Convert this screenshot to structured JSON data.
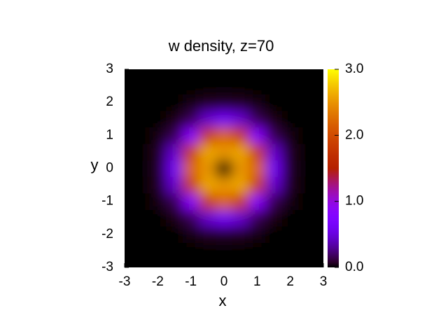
{
  "chart_data": {
    "type": "heatmap",
    "title": "w density, z=70",
    "x_label": "x",
    "y_label": "y",
    "x": [
      -3,
      -2.5,
      -2,
      -1.5,
      -1,
      -0.5,
      0,
      0.5,
      1,
      1.5,
      2,
      2.5,
      3
    ],
    "y": [
      -3,
      -2.5,
      -2,
      -1.5,
      -1,
      -0.5,
      0,
      0.5,
      1,
      1.5,
      2,
      2.5,
      3
    ],
    "z": [
      [
        0,
        0,
        0,
        0,
        0,
        0,
        0,
        0,
        0,
        0,
        0,
        0,
        0
      ],
      [
        0,
        0,
        0,
        0,
        0,
        0,
        0,
        0,
        0,
        0,
        0,
        0,
        0
      ],
      [
        0,
        0,
        0,
        0,
        0.02,
        0.05,
        0.06,
        0.05,
        0.02,
        0,
        0,
        0,
        0
      ],
      [
        0,
        0,
        0,
        0.03,
        0.15,
        0.45,
        0.6,
        0.45,
        0.15,
        0.03,
        0,
        0,
        0
      ],
      [
        0,
        0,
        0.02,
        0.15,
        0.8,
        1.8,
        2.2,
        1.8,
        0.8,
        0.15,
        0.02,
        0,
        0
      ],
      [
        0,
        0,
        0.05,
        0.45,
        1.8,
        2.6,
        2.5,
        2.6,
        1.8,
        0.45,
        0.05,
        0,
        0
      ],
      [
        0,
        0,
        0.06,
        0.6,
        2.2,
        2.5,
        0,
        2.5,
        2.2,
        0.6,
        0.06,
        0,
        0
      ],
      [
        0,
        0,
        0.05,
        0.45,
        1.8,
        2.6,
        2.5,
        2.6,
        1.8,
        0.45,
        0.05,
        0,
        0
      ],
      [
        0,
        0,
        0.02,
        0.15,
        0.8,
        1.8,
        2.2,
        1.8,
        0.8,
        0.15,
        0.02,
        0,
        0
      ],
      [
        0,
        0,
        0,
        0.03,
        0.15,
        0.45,
        0.6,
        0.45,
        0.15,
        0.03,
        0,
        0,
        0
      ],
      [
        0,
        0,
        0,
        0,
        0.02,
        0.05,
        0.06,
        0.05,
        0.02,
        0,
        0,
        0,
        0
      ],
      [
        0,
        0,
        0,
        0,
        0,
        0,
        0,
        0,
        0,
        0,
        0,
        0,
        0
      ],
      [
        0,
        0,
        0,
        0,
        0,
        0,
        0,
        0,
        0,
        0,
        0,
        0,
        0
      ]
    ],
    "xlim": [
      -3,
      3
    ],
    "ylim": [
      -3,
      3
    ],
    "xticks": [
      -3,
      -2,
      -1,
      0,
      1,
      2,
      3
    ],
    "yticks": [
      -3,
      -2,
      -1,
      0,
      1,
      2,
      3
    ],
    "zlim": [
      0,
      3
    ],
    "zticks": [
      {
        "value": 0,
        "label": "0.0"
      },
      {
        "value": 1,
        "label": "1.0"
      },
      {
        "value": 2,
        "label": "2.0"
      },
      {
        "value": 3,
        "label": "3.0"
      }
    ],
    "colormap": "gnuplot"
  }
}
